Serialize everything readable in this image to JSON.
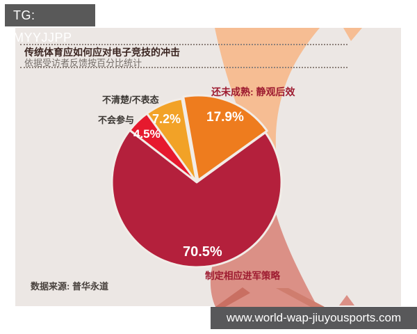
{
  "badge": {
    "text": "TG: MYYJJPP"
  },
  "watermark": {
    "url": "www.world-wap-jiuyousports.com"
  },
  "chart_data": {
    "type": "pie",
    "title": "传统体育应如何应对电子竞技的冲击",
    "subtitle": "依据受访者反馈按百分比统计",
    "source": "数据来源: 普华永道",
    "legend_position": "around-slices",
    "start_angle_deg": 35.6,
    "slices": [
      {
        "label": "还未成熟: 静观后效",
        "value": 17.9,
        "pct": "17.9%",
        "color": "#ee7c1e",
        "offset": [
          2,
          -3
        ]
      },
      {
        "label": "不清楚/不表态",
        "value": 7.2,
        "pct": "7.2%",
        "color": "#f2a227"
      },
      {
        "label": "不会参与",
        "value": 4.5,
        "pct": "4.5%",
        "color": "#e6192e"
      },
      {
        "label": "制定相应进军策略",
        "value": 70.5,
        "pct": "70.5%",
        "color": "#b4203c"
      }
    ],
    "colors": {
      "panel_background": "#ece7e4",
      "swoosh_top": "#f6bd93",
      "swoosh_bottom": "#db9086",
      "slice_separator": "#f2ece7",
      "dark_label": "#9e1c31"
    }
  }
}
